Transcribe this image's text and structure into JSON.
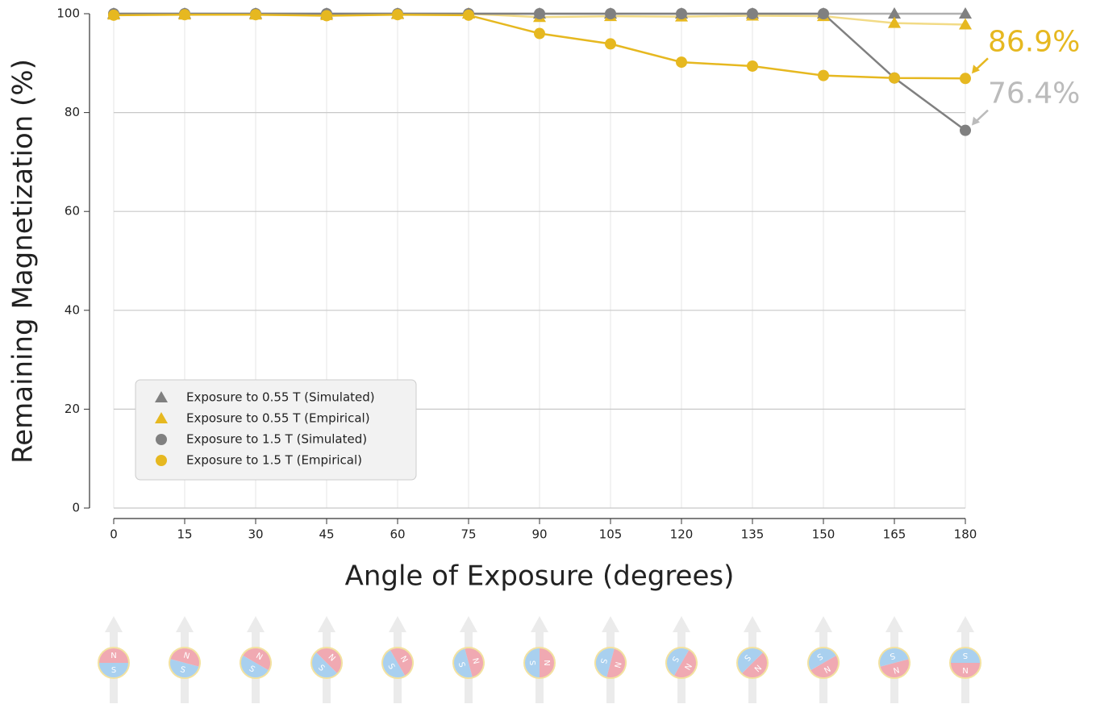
{
  "chart_data": {
    "type": "line",
    "x_label": "Angle of Exposure (degrees)",
    "y_label": "Remaining Magnetization (%)",
    "x": [
      0,
      15,
      30,
      45,
      60,
      75,
      90,
      105,
      120,
      135,
      150,
      165,
      180
    ],
    "xlim": [
      0,
      180
    ],
    "xticks": [
      0,
      15,
      30,
      45,
      60,
      75,
      90,
      105,
      120,
      135,
      150,
      165,
      180
    ],
    "ylim": [
      0,
      100
    ],
    "yticks": [
      0,
      20,
      40,
      60,
      80,
      100
    ],
    "grid": true,
    "legend_position": "lower left",
    "series": [
      {
        "name": "Exposure to 0.55 T (Simulated)",
        "color": "#808080",
        "line_color": "#b0b0b0",
        "marker": "triangle",
        "values": [
          100,
          100,
          100,
          100,
          100,
          100,
          100,
          100,
          100,
          100,
          100,
          100,
          100
        ]
      },
      {
        "name": "Exposure to 0.55 T (Empirical)",
        "color": "#e6b820",
        "line_color": "#f2db86",
        "marker": "triangle",
        "values": [
          99.8,
          99.8,
          99.8,
          99.7,
          99.9,
          100,
          99.3,
          99.5,
          99.4,
          99.6,
          99.5,
          98.1,
          97.8
        ]
      },
      {
        "name": "Exposure to 1.5 T (Simulated)",
        "color": "#808080",
        "line_color": "#808080",
        "marker": "circle",
        "values": [
          100,
          100,
          100,
          100,
          100,
          100,
          100,
          100,
          100,
          100,
          100,
          87.0,
          76.4
        ]
      },
      {
        "name": "Exposure to 1.5 T (Empirical)",
        "color": "#e6b820",
        "line_color": "#e6b820",
        "marker": "circle",
        "values": [
          99.7,
          99.8,
          99.8,
          99.6,
          99.8,
          99.7,
          96.0,
          93.9,
          90.2,
          89.4,
          87.5,
          87.0,
          86.9
        ]
      }
    ],
    "annotations": [
      {
        "text": "86.9%",
        "x": 180,
        "y": 86.9,
        "color": "#e6b820"
      },
      {
        "text": "76.4%",
        "x": 180,
        "y": 76.4,
        "color": "#bbbbbb"
      }
    ],
    "magnet_labels": [
      "N",
      "S"
    ]
  }
}
